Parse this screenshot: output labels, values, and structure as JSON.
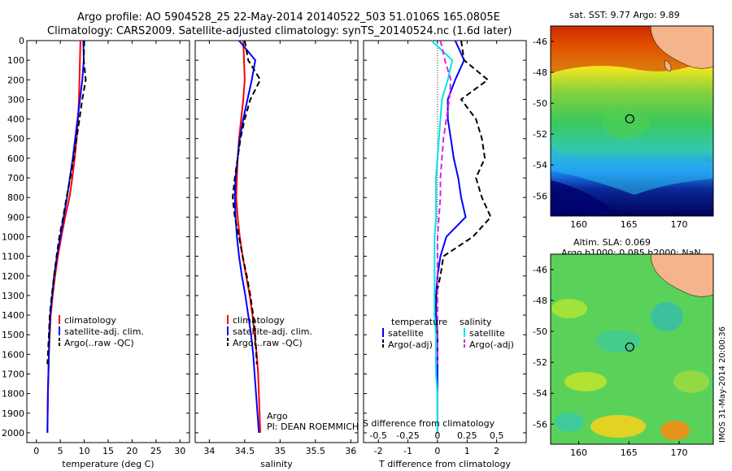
{
  "header": {
    "line1": "Argo profile: AO 5904528_25 22-May-2014 20140522_503 51.0106S 165.0805E",
    "line2": "Climatology: CARS2009. Satellite-adjusted climatology: synTS_20140524.nc (1.6d later)"
  },
  "side_stamp": "IMOS 31-May-2014 20:00:36",
  "chart_data": [
    {
      "type": "line",
      "id": "temperature",
      "xlabel": "temperature (deg C)",
      "ylabel": "",
      "xlim": [
        -2,
        32
      ],
      "ylim": [
        2050,
        0
      ],
      "xticks": [
        "0",
        "5",
        "10",
        "15",
        "20",
        "25",
        "30"
      ],
      "xtick_values": [
        0,
        5,
        10,
        15,
        20,
        25,
        30
      ],
      "yticks": [
        "0",
        "100",
        "200",
        "300",
        "400",
        "500",
        "600",
        "700",
        "800",
        "900",
        "1000",
        "1100",
        "1200",
        "1300",
        "1400",
        "1500",
        "1600",
        "1700",
        "1800",
        "1900",
        "2000"
      ],
      "ytick_values": [
        0,
        100,
        200,
        300,
        400,
        500,
        600,
        700,
        800,
        900,
        1000,
        1100,
        1200,
        1300,
        1400,
        1500,
        1600,
        1700,
        1800,
        1900,
        2000
      ],
      "legend": [
        "climatology",
        "satellite-adj. clim.",
        "Argo(..raw -QC)"
      ],
      "legend_position": "lower-right",
      "series": [
        {
          "name": "climatology",
          "color": "#ff0000",
          "style": "solid",
          "x": [
            9.2,
            9.1,
            9.0,
            8.9,
            8.7,
            8.4,
            8.0,
            7.5,
            6.9,
            6.0,
            5.2,
            4.5,
            3.9,
            3.4,
            3.0,
            2.8,
            2.6,
            2.5,
            2.4,
            2.3
          ],
          "y": [
            0,
            100,
            200,
            300,
            400,
            500,
            600,
            700,
            800,
            900,
            1000,
            1100,
            1200,
            1300,
            1400,
            1500,
            1600,
            1700,
            1800,
            2000
          ]
        },
        {
          "name": "satellite-adj. clim.",
          "color": "#0000ff",
          "style": "solid",
          "x": [
            9.8,
            9.9,
            9.6,
            9.1,
            8.6,
            8.1,
            7.6,
            7.0,
            6.4,
            5.7,
            5.0,
            4.3,
            3.7,
            3.3,
            2.9,
            2.7,
            2.6,
            2.5,
            2.4,
            2.3
          ],
          "y": [
            0,
            100,
            200,
            300,
            400,
            500,
            600,
            700,
            800,
            900,
            1000,
            1100,
            1200,
            1300,
            1400,
            1500,
            1600,
            1700,
            1800,
            2000
          ]
        },
        {
          "name": "Argo(..raw -QC)",
          "color": "#000000",
          "style": "dashed",
          "x": [
            10.0,
            9.9,
            10.3,
            9.6,
            9.0,
            8.4,
            7.8,
            7.1,
            6.3,
            5.6,
            4.8,
            4.2,
            3.7,
            3.2,
            2.8,
            2.6,
            2.3
          ],
          "y": [
            0,
            100,
            200,
            300,
            400,
            500,
            600,
            700,
            800,
            900,
            1000,
            1100,
            1200,
            1300,
            1400,
            1500,
            1650
          ]
        }
      ]
    },
    {
      "type": "line",
      "id": "salinity",
      "xlabel": "salinity",
      "xlim": [
        33.8,
        36.1
      ],
      "ylim": [
        2050,
        0
      ],
      "xticks": [
        "34",
        "34.5",
        "35",
        "35.5",
        "36"
      ],
      "xtick_values": [
        34,
        34.5,
        35,
        35.5,
        36
      ],
      "legend": [
        "climatology",
        "satellite-adj. clim.",
        "Argo(..raw -QC)"
      ],
      "legend_position": "lower-right",
      "annotation": {
        "line1": "Argo",
        "line2": "PI: DEAN ROEMMICH"
      },
      "series": [
        {
          "name": "climatology",
          "color": "#ff0000",
          "style": "solid",
          "x": [
            34.48,
            34.49,
            34.5,
            34.48,
            34.45,
            34.42,
            34.4,
            34.39,
            34.38,
            34.4,
            34.43,
            34.47,
            34.52,
            34.57,
            34.61,
            34.64,
            34.67,
            34.69,
            34.7,
            34.72
          ],
          "y": [
            0,
            100,
            200,
            300,
            400,
            500,
            600,
            700,
            800,
            900,
            1000,
            1100,
            1200,
            1300,
            1400,
            1500,
            1600,
            1700,
            1800,
            2000
          ]
        },
        {
          "name": "satellite-adj. clim.",
          "color": "#0000ff",
          "style": "solid",
          "x": [
            34.42,
            34.65,
            34.6,
            34.54,
            34.48,
            34.43,
            34.4,
            34.37,
            34.36,
            34.37,
            34.39,
            34.42,
            34.46,
            34.51,
            34.55,
            34.59,
            34.62,
            34.64,
            34.66,
            34.7
          ],
          "y": [
            0,
            100,
            200,
            300,
            400,
            500,
            600,
            700,
            800,
            900,
            1000,
            1100,
            1200,
            1300,
            1400,
            1500,
            1600,
            1700,
            1800,
            2000
          ]
        },
        {
          "name": "Argo(..raw -QC)",
          "color": "#000000",
          "style": "dashed",
          "x": [
            34.5,
            34.55,
            34.72,
            34.58,
            34.5,
            34.44,
            34.4,
            34.36,
            34.33,
            34.36,
            34.42,
            34.47,
            34.53,
            34.58,
            34.62,
            34.65,
            34.67
          ],
          "y": [
            0,
            100,
            200,
            300,
            400,
            500,
            600,
            700,
            800,
            900,
            1000,
            1100,
            1200,
            1300,
            1400,
            1500,
            1650
          ]
        }
      ]
    },
    {
      "type": "line",
      "id": "differences",
      "xlabel": "T difference from climatology",
      "xlabel_top": "S difference from climatology",
      "xlim": [
        -2.5,
        3.0
      ],
      "ylim": [
        2050,
        0
      ],
      "xticks": [
        "-2",
        "-1",
        "0",
        "1",
        "2"
      ],
      "xtick_values": [
        -2,
        -1,
        0,
        1,
        2
      ],
      "sticks": [
        "-0.5",
        "-0.25",
        "0",
        "0.25",
        "0.5"
      ],
      "stick_values": [
        -0.5,
        -0.25,
        0,
        0.25,
        0.5
      ],
      "legend_titles": [
        "temperature",
        "salinity"
      ],
      "legend": [
        "satellite",
        "Argo(-adj)",
        "satellite",
        "Argo(-adj)"
      ],
      "legend_position": "lower-center",
      "series": [
        {
          "name": "satellite",
          "group": "temperature",
          "color": "#0000ff",
          "style": "solid",
          "x": [
            0.6,
            0.9,
            0.6,
            0.35,
            0.35,
            0.45,
            0.55,
            0.7,
            0.8,
            0.95,
            0.3,
            0.1,
            0.0,
            -0.05,
            -0.05,
            0.0,
            0.0,
            0.0,
            0.0,
            0.0
          ],
          "y": [
            0,
            100,
            200,
            300,
            400,
            500,
            600,
            700,
            800,
            900,
            1000,
            1100,
            1200,
            1300,
            1400,
            1500,
            1600,
            1700,
            1800,
            2000
          ]
        },
        {
          "name": "Argo(-adj)",
          "group": "temperature",
          "color": "#000000",
          "style": "dashed",
          "x": [
            0.8,
            0.9,
            1.7,
            0.8,
            1.3,
            1.5,
            1.6,
            1.3,
            1.5,
            1.8,
            1.2,
            0.2,
            0.1,
            -0.05,
            -0.1,
            0.0,
            -0.05,
            -0.05
          ],
          "y": [
            0,
            100,
            200,
            300,
            400,
            500,
            600,
            700,
            800,
            900,
            1000,
            1100,
            1200,
            1300,
            1400,
            1500,
            1600,
            1650
          ]
        },
        {
          "name": "satellite",
          "group": "salinity",
          "color": "#00e5e5",
          "style": "solid",
          "x": [
            -0.2,
            0.5,
            0.35,
            0.15,
            0.1,
            0.05,
            0.0,
            -0.05,
            -0.05,
            -0.05,
            -0.1,
            -0.1,
            -0.1,
            -0.1,
            -0.1,
            -0.05,
            -0.05,
            -0.05,
            0.0,
            0.0
          ],
          "y": [
            0,
            100,
            200,
            300,
            400,
            500,
            600,
            700,
            800,
            900,
            1000,
            1100,
            1200,
            1300,
            1400,
            1500,
            1600,
            1700,
            1800,
            2000
          ]
        },
        {
          "name": "Argo(-adj)",
          "group": "salinity",
          "color": "#e020e0",
          "style": "dashed",
          "x": [
            0.1,
            0.25,
            0.45,
            0.4,
            0.3,
            0.2,
            0.15,
            0.1,
            0.1,
            0.05,
            0.0,
            0.0,
            0.0,
            0.0,
            0.0,
            0.0,
            0.0,
            0.0
          ],
          "y": [
            0,
            100,
            200,
            300,
            400,
            500,
            600,
            700,
            800,
            900,
            1000,
            1100,
            1200,
            1300,
            1400,
            1500,
            1600,
            1650
          ]
        }
      ]
    },
    {
      "type": "heatmap",
      "id": "sst_map",
      "title": "sat. SST: 9.77 Argo: 9.89",
      "xlim": [
        157.2,
        173.4
      ],
      "ylim": [
        -57.3,
        -45.0
      ],
      "xticks": [
        "160",
        "165",
        "170"
      ],
      "xtick_values": [
        160,
        165,
        170
      ],
      "yticks": [
        "-46",
        "-48",
        "-50",
        "-52",
        "-54",
        "-56"
      ],
      "ytick_values": [
        -46,
        -48,
        -50,
        -52,
        -54,
        -56
      ],
      "marker": {
        "lon": 165.08,
        "lat": -51.01
      }
    },
    {
      "type": "heatmap",
      "id": "sla_map",
      "title": "Altim. SLA: 0.069",
      "subtitle": "Argo h1000: 0.085 h2000: NaN",
      "xlim": [
        157.2,
        173.4
      ],
      "ylim": [
        -57.3,
        -45.0
      ],
      "xticks": [
        "160",
        "165",
        "170"
      ],
      "xtick_values": [
        160,
        165,
        170
      ],
      "yticks": [
        "-46",
        "-48",
        "-50",
        "-52",
        "-54",
        "-56"
      ],
      "ytick_values": [
        -46,
        -48,
        -50,
        -52,
        -54,
        -56
      ],
      "marker": {
        "lon": 165.08,
        "lat": -51.01
      }
    }
  ]
}
